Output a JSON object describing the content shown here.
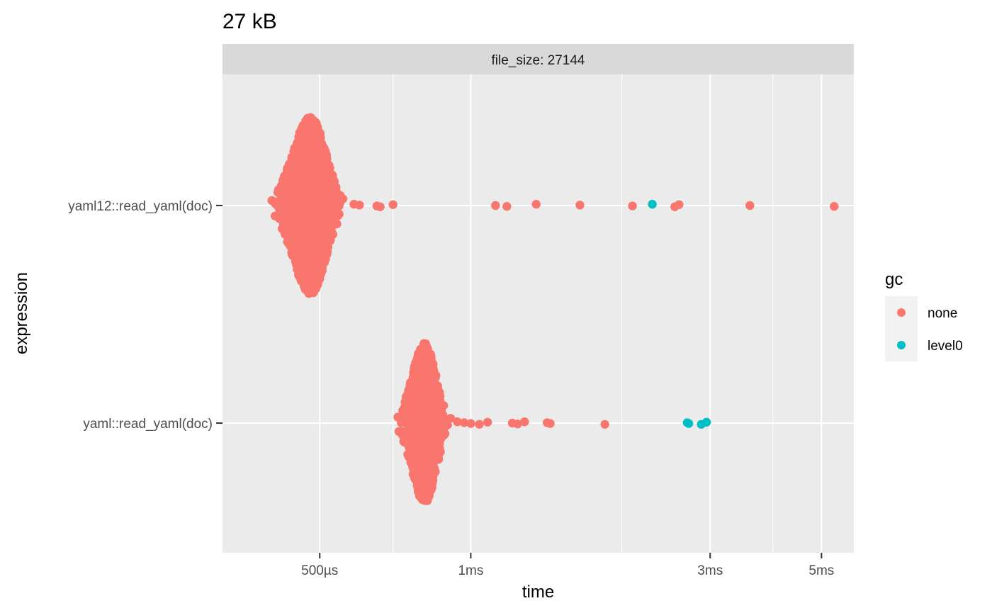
{
  "chart_data": {
    "type": "scatter",
    "title": "27 kB",
    "facet_label": "file_size: 27144",
    "xlabel": "time",
    "ylabel": "expression",
    "x_scale": "log10",
    "x_unit": "seconds",
    "xlim": [
      0.00032,
      0.0058
    ],
    "x_major_ticks": [
      {
        "value": 0.0005,
        "label": "500µs"
      },
      {
        "value": 0.001,
        "label": "1ms"
      },
      {
        "value": 0.003,
        "label": "3ms"
      },
      {
        "value": 0.005,
        "label": "5ms"
      }
    ],
    "x_minor_ticks": [
      0.0007,
      0.002,
      0.004
    ],
    "categories": [
      "yaml12::read_yaml(doc)",
      "yaml::read_yaml(doc)"
    ],
    "grid": true,
    "legend": {
      "title": "gc",
      "position": "right",
      "entries": [
        {
          "name": "none",
          "color": "#F8766D"
        },
        {
          "name": "level0",
          "color": "#00BFC4"
        }
      ]
    },
    "series": [
      {
        "name": "none",
        "color": "#F8766D",
        "clusters": [
          {
            "category": "yaml12::read_yaml(doc)",
            "mode": 0.00048,
            "x_min": 0.00039,
            "x_max": 0.00057,
            "height": 1.0,
            "count": 2600
          },
          {
            "category": "yaml::read_yaml(doc)",
            "mode": 0.00081,
            "x_min": 0.0007,
            "x_max": 0.00092,
            "height": 0.9,
            "count": 1400
          }
        ],
        "points": [
          {
            "category": "yaml12::read_yaml(doc)",
            "x": 0.000585
          },
          {
            "category": "yaml12::read_yaml(doc)",
            "x": 0.0006
          },
          {
            "category": "yaml12::read_yaml(doc)",
            "x": 0.00065
          },
          {
            "category": "yaml12::read_yaml(doc)",
            "x": 0.00066
          },
          {
            "category": "yaml12::read_yaml(doc)",
            "x": 0.0007
          },
          {
            "category": "yaml12::read_yaml(doc)",
            "x": 0.00112
          },
          {
            "category": "yaml12::read_yaml(doc)",
            "x": 0.00118
          },
          {
            "category": "yaml12::read_yaml(doc)",
            "x": 0.00135
          },
          {
            "category": "yaml12::read_yaml(doc)",
            "x": 0.00165
          },
          {
            "category": "yaml12::read_yaml(doc)",
            "x": 0.0021
          },
          {
            "category": "yaml12::read_yaml(doc)",
            "x": 0.00255
          },
          {
            "category": "yaml12::read_yaml(doc)",
            "x": 0.0026
          },
          {
            "category": "yaml12::read_yaml(doc)",
            "x": 0.0036
          },
          {
            "category": "yaml12::read_yaml(doc)",
            "x": 0.0053
          },
          {
            "category": "yaml::read_yaml(doc)",
            "x": 0.00094
          },
          {
            "category": "yaml::read_yaml(doc)",
            "x": 0.00097
          },
          {
            "category": "yaml::read_yaml(doc)",
            "x": 0.001
          },
          {
            "category": "yaml::read_yaml(doc)",
            "x": 0.00104
          },
          {
            "category": "yaml::read_yaml(doc)",
            "x": 0.00108
          },
          {
            "category": "yaml::read_yaml(doc)",
            "x": 0.00121
          },
          {
            "category": "yaml::read_yaml(doc)",
            "x": 0.00124
          },
          {
            "category": "yaml::read_yaml(doc)",
            "x": 0.00128
          },
          {
            "category": "yaml::read_yaml(doc)",
            "x": 0.00142
          },
          {
            "category": "yaml::read_yaml(doc)",
            "x": 0.00144
          },
          {
            "category": "yaml::read_yaml(doc)",
            "x": 0.00185
          }
        ]
      },
      {
        "name": "level0",
        "color": "#00BFC4",
        "points": [
          {
            "category": "yaml12::read_yaml(doc)",
            "x": 0.0023
          },
          {
            "category": "yaml::read_yaml(doc)",
            "x": 0.0027
          },
          {
            "category": "yaml::read_yaml(doc)",
            "x": 0.00272
          },
          {
            "category": "yaml::read_yaml(doc)",
            "x": 0.00288
          },
          {
            "category": "yaml::read_yaml(doc)",
            "x": 0.00295
          }
        ]
      }
    ]
  }
}
